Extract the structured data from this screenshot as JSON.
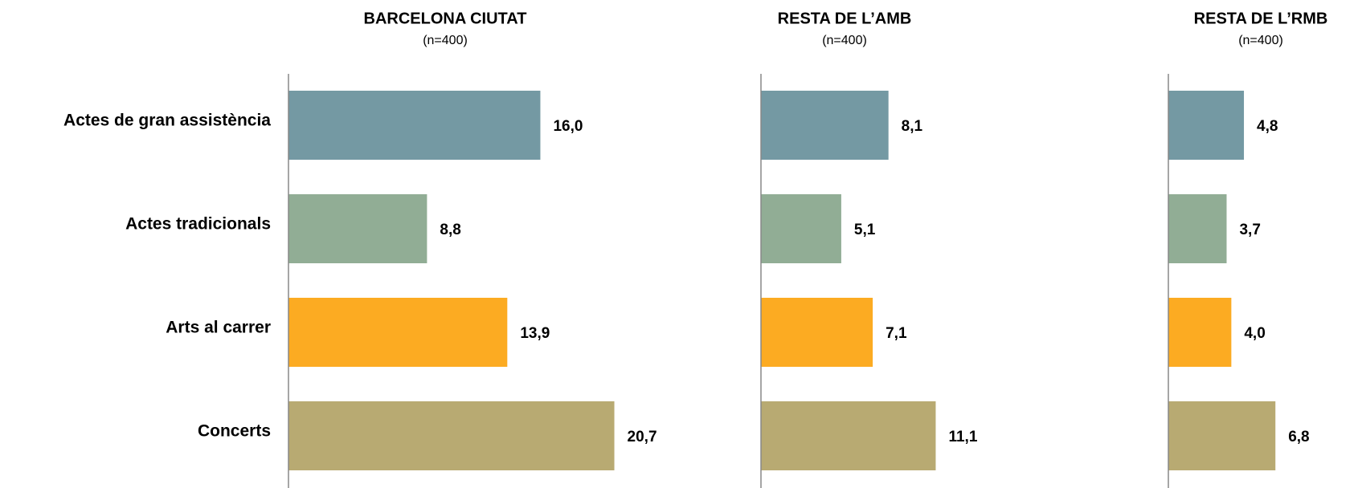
{
  "chart_data": [
    {
      "type": "bar",
      "title": "BARCELONA CIUTAT",
      "subtitle": "(n=400)",
      "categories": [
        "Actes de gran assistència",
        "Actes tradicionals",
        "Arts al carrer",
        "Concerts"
      ],
      "values": [
        16.0,
        8.8,
        13.9,
        20.7
      ],
      "value_labels": [
        "16,0",
        "8,8",
        "13,9",
        "20,7"
      ],
      "colors": [
        "#7499a3",
        "#91ad95",
        "#fcab22",
        "#b8aa72"
      ],
      "xlim": [
        0,
        22
      ]
    },
    {
      "type": "bar",
      "title": "RESTA DE L’AMB",
      "subtitle": "(n=400)",
      "values": [
        8.1,
        5.1,
        7.1,
        11.1
      ],
      "value_labels": [
        "8,1",
        "5,1",
        "7,1",
        "11,1"
      ],
      "colors": [
        "#7499a3",
        "#91ad95",
        "#fcab22",
        "#b8aa72"
      ],
      "xlim": [
        0,
        22
      ]
    },
    {
      "type": "bar",
      "title": "RESTA DE L’RMB",
      "subtitle": "(n=400)",
      "values": [
        4.8,
        3.7,
        4.0,
        6.8
      ],
      "value_labels": [
        "4,8",
        "3,7",
        "4,0",
        "6,8"
      ],
      "colors": [
        "#7499a3",
        "#91ad95",
        "#fcab22",
        "#b8aa72"
      ],
      "xlim": [
        0,
        22
      ]
    }
  ]
}
